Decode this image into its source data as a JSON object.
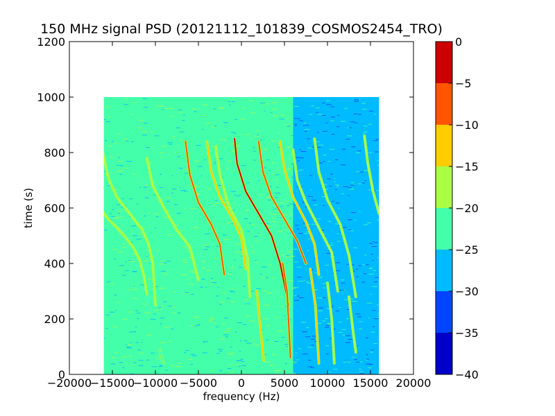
{
  "chart_data": {
    "type": "heatmap",
    "title": "150 MHz signal PSD (20121112_101839_COSMOS2454_TRO)",
    "xlabel": "frequency (Hz)",
    "ylabel": "time (s)",
    "xlim": [
      -20000,
      20000
    ],
    "ylim": [
      0,
      1200
    ],
    "x_ticks": [
      -20000,
      -15000,
      -10000,
      -5000,
      0,
      5000,
      10000,
      15000,
      20000
    ],
    "x_tick_labels": [
      "−20000",
      "−15000",
      "−10000",
      "−5000",
      "0",
      "5000",
      "10000",
      "15000",
      "20000"
    ],
    "y_ticks": [
      0,
      200,
      400,
      600,
      800,
      1000,
      1200
    ],
    "y_tick_labels": [
      "0",
      "200",
      "400",
      "600",
      "800",
      "1000",
      "1200"
    ],
    "data_extent": {
      "x": [
        -16000,
        16000
      ],
      "y": [
        0,
        1000
      ]
    },
    "background_regions": [
      {
        "x": [
          -16000,
          -10000
        ],
        "level": -25
      },
      {
        "x": [
          -10000,
          6000
        ],
        "level": -22.5
      },
      {
        "x": [
          6000,
          16000
        ],
        "level": -27.5
      }
    ],
    "traces": [
      {
        "x": [
          -16200,
          -15500,
          -14500,
          -13500,
          -12500,
          -11800,
          -11300,
          -11000
        ],
        "y": [
          590,
          560,
          530,
          495,
          455,
          410,
          350,
          290
        ],
        "level": -17.5
      },
      {
        "x": [
          -16100,
          -15500,
          -14500,
          -13000,
          -11500,
          -10800,
          -10300,
          -10000
        ],
        "y": [
          800,
          710,
          640,
          580,
          520,
          470,
          400,
          250
        ],
        "level": -17.5
      },
      {
        "x": [
          -11000,
          -10300,
          -9000,
          -7500,
          -6000,
          -5000
        ],
        "y": [
          780,
          680,
          600,
          520,
          460,
          340
        ],
        "level": -17.5
      },
      {
        "x": [
          -6500,
          -6000,
          -5000,
          -3500,
          -2500,
          -2000
        ],
        "y": [
          840,
          720,
          620,
          540,
          470,
          360
        ],
        "level": -7.5
      },
      {
        "x": [
          -4000,
          -3500,
          -2500,
          -1000,
          0,
          500
        ],
        "y": [
          840,
          730,
          640,
          560,
          490,
          380
        ],
        "level": -12.5
      },
      {
        "x": [
          -3000,
          -2500,
          -1500,
          0,
          700,
          1000
        ],
        "y": [
          820,
          720,
          610,
          520,
          420,
          280
        ],
        "level": -17.5
      },
      {
        "x": [
          -800,
          -500,
          500,
          2000,
          3500,
          4500,
          5500
        ],
        "y": [
          850,
          760,
          660,
          580,
          500,
          400,
          250
        ],
        "level": -2.5
      },
      {
        "x": [
          2000,
          2500,
          3500,
          5000,
          6500,
          7500
        ],
        "y": [
          840,
          730,
          640,
          560,
          480,
          400
        ],
        "level": -7.5
      },
      {
        "x": [
          4500,
          5000,
          6000,
          7500,
          8500,
          9000
        ],
        "y": [
          840,
          740,
          640,
          550,
          470,
          360
        ],
        "level": -12.5
      },
      {
        "x": [
          6000,
          6500,
          7500,
          9000,
          10500,
          11200
        ],
        "y": [
          810,
          700,
          620,
          530,
          440,
          300
        ],
        "level": -17.5
      },
      {
        "x": [
          8500,
          9000,
          10000,
          11500,
          12500,
          13300
        ],
        "y": [
          850,
          730,
          630,
          540,
          430,
          280
        ],
        "level": -17.5
      },
      {
        "x": [
          14300,
          14700,
          15300,
          16000
        ],
        "y": [
          860,
          760,
          660,
          580
        ],
        "level": -17.5
      },
      {
        "x": [
          -9500,
          -9300,
          -9000
        ],
        "y": [
          90,
          60,
          40
        ],
        "level": -22.5
      },
      {
        "x": [
          1800,
          2100,
          2600
        ],
        "y": [
          300,
          200,
          50
        ],
        "level": -12.5
      },
      {
        "x": [
          4800,
          5300,
          5700
        ],
        "y": [
          400,
          300,
          60
        ],
        "level": -7.5
      },
      {
        "x": [
          8000,
          8600,
          9000
        ],
        "y": [
          380,
          250,
          40
        ],
        "level": -12.5
      },
      {
        "x": [
          10000,
          10500,
          10800
        ],
        "y": [
          330,
          200,
          40
        ],
        "level": -17.5
      },
      {
        "x": [
          12500,
          13000,
          13300
        ],
        "y": [
          280,
          150,
          80
        ],
        "level": -17.5
      }
    ],
    "colorbar": {
      "levels": [
        -40,
        -35,
        -30,
        -25,
        -20,
        -15,
        -10,
        -5,
        0
      ],
      "tick_labels": [
        "−40",
        "−35",
        "−30",
        "−25",
        "−20",
        "−15",
        "−10",
        "−5",
        "0"
      ],
      "colors": [
        "#0000c8",
        "#0044ff",
        "#00bbff",
        "#44ffaa",
        "#aaff44",
        "#ffcc00",
        "#ff5500",
        "#cc0000"
      ]
    },
    "grid": false,
    "legend": "none"
  }
}
